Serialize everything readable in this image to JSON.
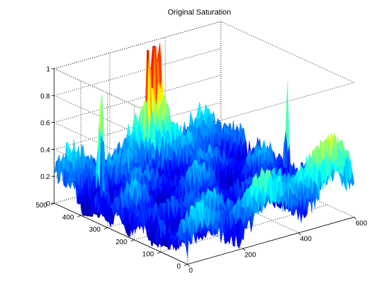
{
  "figure": {
    "background": "#ffffff"
  },
  "chart_data": {
    "type": "surface",
    "title": "Original Saturation",
    "xlabel": "",
    "ylabel": "",
    "zlabel": "",
    "xlim": [
      0,
      600
    ],
    "ylim": [
      0,
      500
    ],
    "zlim": [
      0,
      1
    ],
    "xticks": [
      "0",
      "200",
      "400",
      "600"
    ],
    "yticks": [
      "0",
      "100",
      "200",
      "300",
      "400",
      "500"
    ],
    "zticks": [
      "0",
      "0.2",
      "0.4",
      "0.6",
      "0.8",
      "1"
    ],
    "grid": true,
    "box": true,
    "colormap": "jet",
    "colormap_stops": [
      "#00008f",
      "#0000ff",
      "#00ffff",
      "#ffff00",
      "#ff0000",
      "#800000"
    ],
    "surface_description": "noisy saturation surface; mostly 0.1–0.4 with a high-saturation cluster near x≈300–400, y≈450–500 peaking near 1.0, isolated spikes near x≈60–120 at y≈400–480 reaching ≈0.85, and a smooth ridge along the front-right edge rising from ≈0.15 to ≈0.4",
    "peaks": [
      {
        "x": 330,
        "y": 470,
        "z": 1.0
      },
      {
        "x": 360,
        "y": 480,
        "z": 0.95
      },
      {
        "x": 300,
        "y": 460,
        "z": 0.9
      },
      {
        "x": 90,
        "y": 420,
        "z": 0.88
      },
      {
        "x": 130,
        "y": 460,
        "z": 0.82
      },
      {
        "x": 600,
        "y": 250,
        "z": 0.85
      }
    ]
  }
}
